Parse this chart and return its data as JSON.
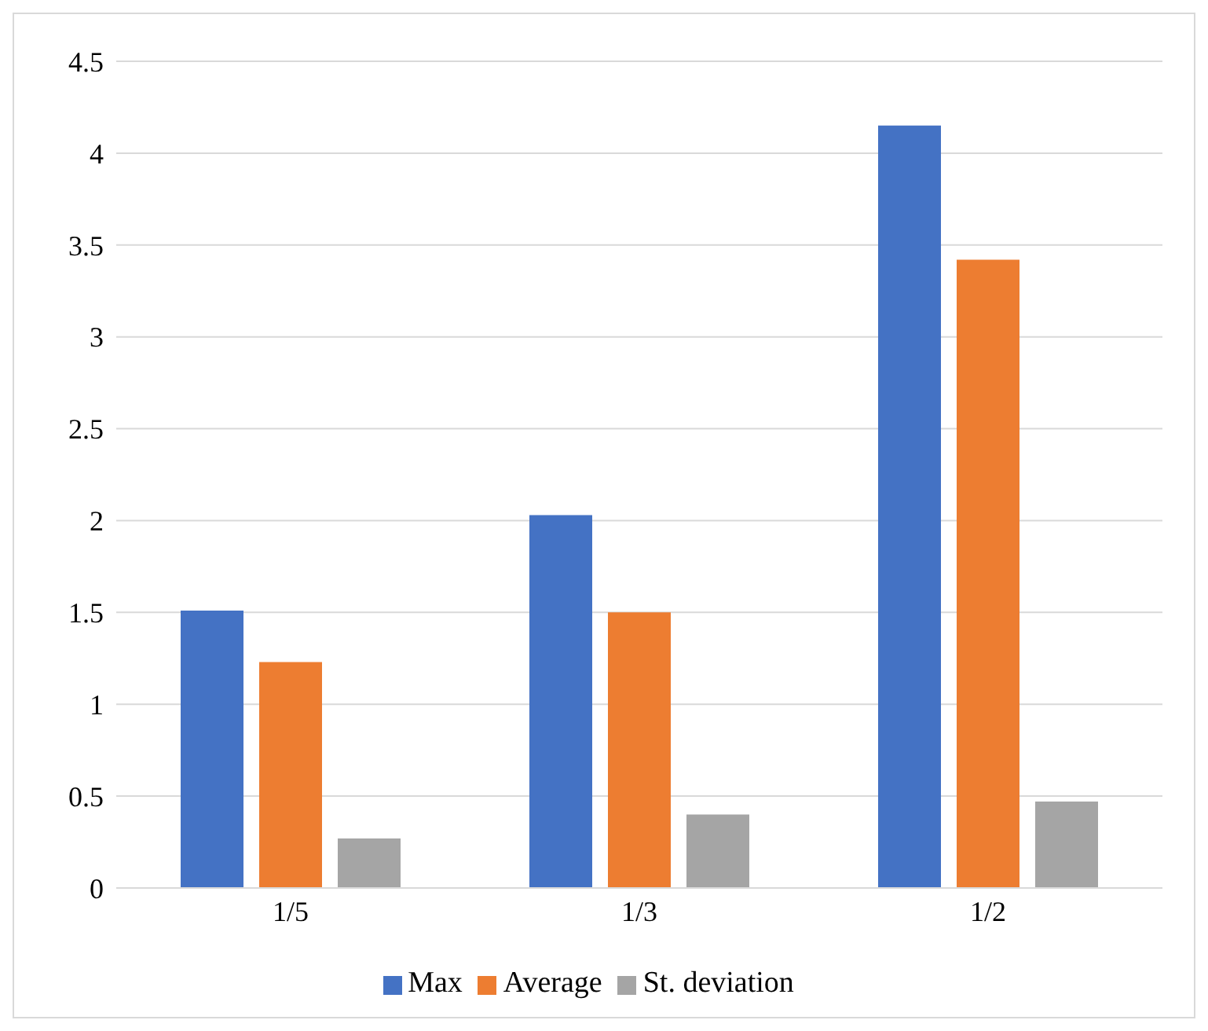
{
  "chart_data": {
    "type": "bar",
    "categories": [
      "1/5",
      "1/3",
      "1/2"
    ],
    "series": [
      {
        "name": "Max",
        "color": "#4472c4",
        "values": [
          1.51,
          2.03,
          4.15
        ]
      },
      {
        "name": "Average",
        "color": "#ed7d31",
        "values": [
          1.23,
          1.5,
          3.42
        ]
      },
      {
        "name": "St. deviation",
        "color": "#a5a5a5",
        "values": [
          0.27,
          0.4,
          0.47
        ]
      }
    ],
    "ylim": [
      0,
      4.5
    ],
    "yticks": [
      0,
      0.5,
      1,
      1.5,
      2,
      2.5,
      3,
      3.5,
      4,
      4.5
    ],
    "grid": "y",
    "legend": "bottom"
  }
}
